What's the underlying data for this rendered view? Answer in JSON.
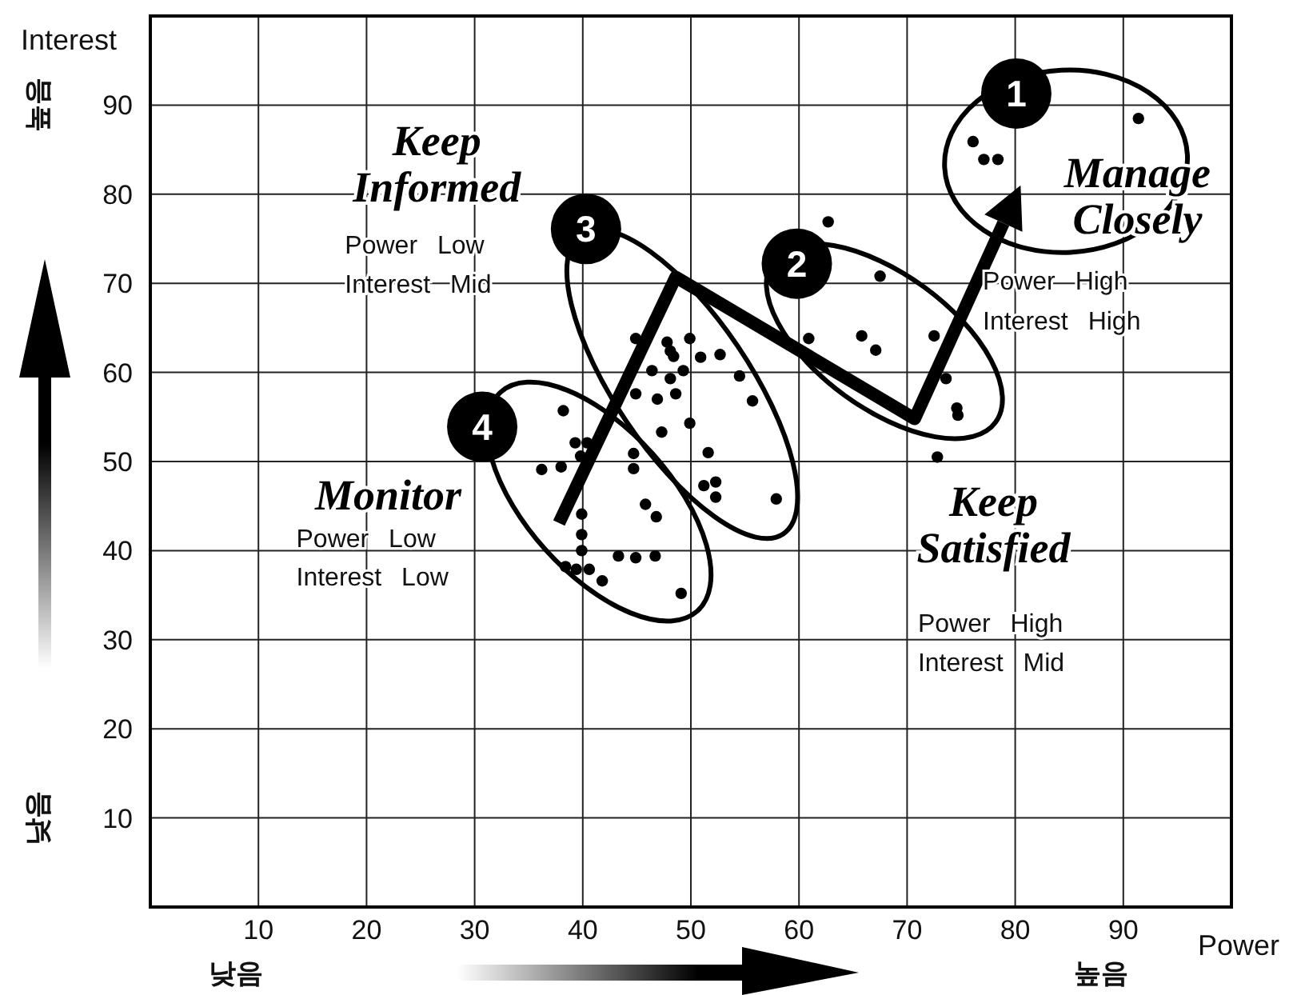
{
  "chart_data": {
    "type": "scatter",
    "xlabel": "Power",
    "ylabel": "Interest",
    "xlim": [
      0,
      100
    ],
    "ylim": [
      0,
      100
    ],
    "xticks": [
      10,
      20,
      30,
      40,
      50,
      60,
      70,
      80,
      90
    ],
    "yticks": [
      10,
      20,
      30,
      40,
      50,
      60,
      70,
      80,
      90
    ],
    "grid": true,
    "series": [
      {
        "marker": "circle",
        "color": "#000000",
        "x": [
          44.9,
          47.8,
          48.1,
          48.4,
          49.9,
          50.9,
          52.7,
          46.4,
          48.1,
          49.3,
          54.5,
          44.9,
          46.9,
          48.6,
          55.7,
          49.9,
          47.3,
          38.2,
          39.3,
          40.4,
          39.8,
          36.2,
          38.0,
          44.7,
          44.7,
          51.6,
          51.2,
          52.3,
          52.3,
          57.9,
          45.8,
          46.8,
          39.9,
          39.9,
          39.9,
          43.3,
          44.9,
          46.7,
          38.4,
          39.4,
          40.6,
          41.8,
          49.1,
          62.7,
          67.5,
          60.9,
          65.8,
          67.1,
          72.5,
          73.6,
          74.6,
          74.7,
          72.8,
          76.1,
          77.1,
          78.4,
          91.4
        ],
        "values": [
          63.8,
          63.4,
          62.4,
          61.8,
          63.8,
          61.7,
          62.0,
          60.2,
          59.3,
          60.2,
          59.6,
          57.6,
          57.0,
          57.6,
          56.8,
          54.3,
          53.3,
          55.7,
          52.1,
          52.1,
          50.6,
          49.1,
          49.4,
          50.9,
          49.2,
          51.0,
          47.3,
          47.7,
          46.0,
          45.8,
          45.2,
          43.8,
          44.1,
          41.8,
          40.0,
          39.4,
          39.2,
          39.4,
          38.2,
          37.9,
          37.9,
          36.6,
          35.2,
          76.9,
          70.8,
          63.8,
          64.1,
          62.5,
          64.1,
          59.3,
          56.0,
          55.2,
          50.5,
          85.9,
          83.9,
          83.9,
          88.5
        ]
      }
    ],
    "annotations": [
      "1",
      "2",
      "3",
      "4",
      "Manage Closely",
      "Power High",
      "Interest High",
      "Keep Informed",
      "Power Low",
      "Interest Mid",
      "Monitor",
      "Power Low",
      "Interest Low",
      "Keep Satisfied",
      "Power High",
      "Interest Mid",
      "높음",
      "낮음",
      "낮음",
      "높음"
    ]
  }
}
